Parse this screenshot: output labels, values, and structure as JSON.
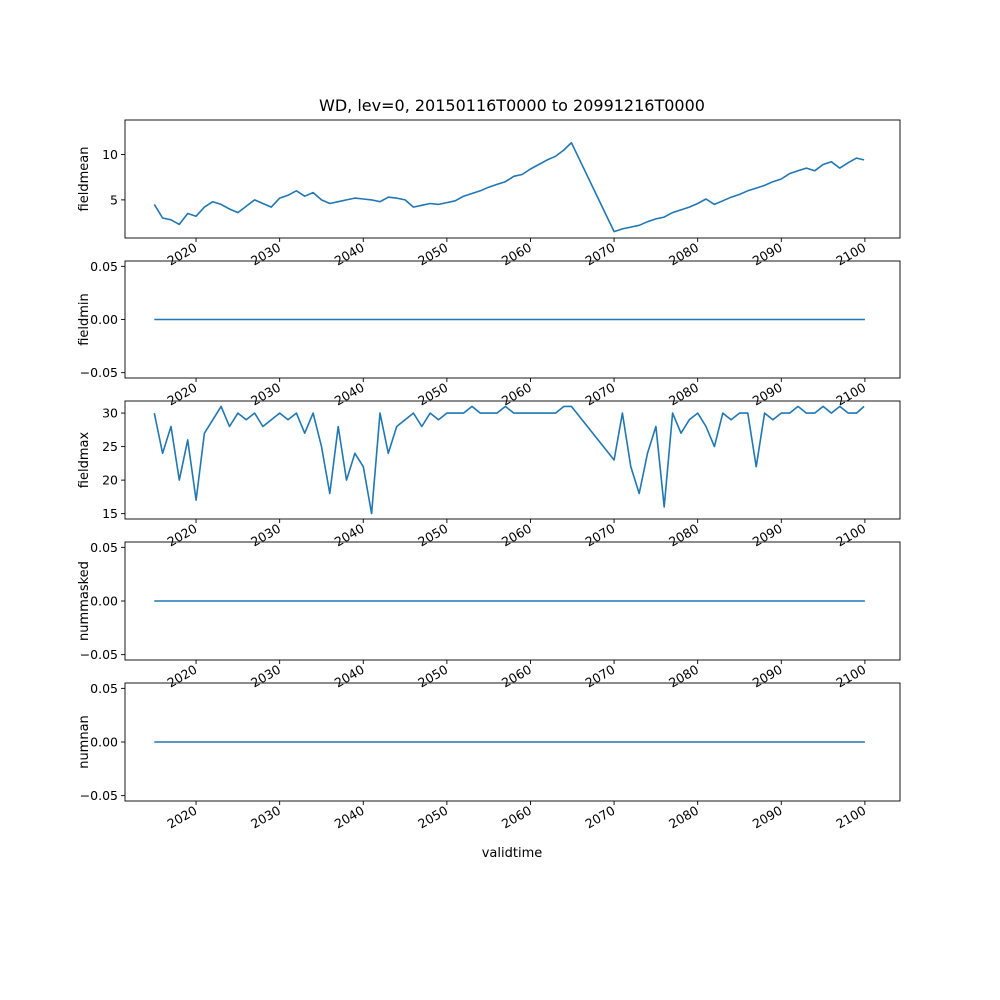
{
  "figure": {
    "title": "WD, lev=0, 20150116T0000 to 20991216T0000",
    "xlabel": "validtime"
  },
  "colors": {
    "line": "#1f77b4",
    "axis": "#000000",
    "background": "#ffffff"
  },
  "chart_data": [
    {
      "type": "line",
      "ylabel": "fieldmean",
      "xlim": [
        2011.5,
        2104.2
      ],
      "ylim": [
        0.8,
        13.8
      ],
      "yticks": [
        5,
        10
      ],
      "ytick_labels": [
        "5",
        "10"
      ],
      "xticks": [
        2020,
        2030,
        2040,
        2050,
        2060,
        2070,
        2080,
        2090,
        2100
      ],
      "xtick_labels": [
        "2020",
        "2030",
        "2040",
        "2050",
        "2060",
        "2070",
        "2080",
        "2090",
        "2100"
      ],
      "grid": false,
      "series_style": "monthly fluctuating series with a data gap between 2065 and 2070 (straight connecting line)",
      "x": [
        2015.0,
        2016.0,
        2017.0,
        2018.0,
        2019.0,
        2020.0,
        2021.0,
        2022.0,
        2023.0,
        2024.0,
        2025.0,
        2026.0,
        2027.0,
        2028.0,
        2029.0,
        2030.0,
        2031.0,
        2032.0,
        2033.0,
        2034.0,
        2035.0,
        2036.0,
        2037.0,
        2038.0,
        2039.0,
        2040.0,
        2041.0,
        2042.0,
        2043.0,
        2044.0,
        2045.0,
        2046.0,
        2047.0,
        2048.0,
        2049.0,
        2050.0,
        2051.0,
        2052.0,
        2053.0,
        2054.0,
        2055.0,
        2056.0,
        2057.0,
        2058.0,
        2059.0,
        2060.0,
        2061.0,
        2062.0,
        2063.0,
        2064.0,
        2064.9,
        2070.0,
        2071.0,
        2072.0,
        2073.0,
        2074.0,
        2075.0,
        2076.0,
        2077.0,
        2078.0,
        2079.0,
        2080.0,
        2081.0,
        2082.0,
        2083.0,
        2084.0,
        2085.0,
        2086.0,
        2087.0,
        2088.0,
        2089.0,
        2090.0,
        2091.0,
        2092.0,
        2093.0,
        2094.0,
        2095.0,
        2096.0,
        2097.0,
        2098.0,
        2099.0,
        2099.9
      ],
      "y": [
        4.5,
        3.0,
        2.8,
        2.3,
        3.5,
        3.2,
        4.2,
        4.8,
        4.5,
        4.0,
        3.6,
        4.3,
        5.0,
        4.6,
        4.2,
        5.2,
        5.5,
        6.0,
        5.4,
        5.8,
        5.0,
        4.6,
        4.8,
        5.0,
        5.2,
        5.1,
        5.0,
        4.8,
        5.3,
        5.2,
        5.0,
        4.2,
        4.4,
        4.6,
        4.5,
        4.7,
        4.9,
        5.4,
        5.7,
        6.0,
        6.4,
        6.7,
        7.0,
        7.6,
        7.8,
        8.4,
        8.9,
        9.4,
        9.8,
        10.5,
        11.3,
        1.5,
        1.8,
        2.0,
        2.2,
        2.6,
        2.9,
        3.1,
        3.6,
        3.9,
        4.2,
        4.6,
        5.1,
        4.5,
        4.9,
        5.3,
        5.6,
        6.0,
        6.3,
        6.6,
        7.0,
        7.3,
        7.9,
        8.2,
        8.5,
        8.2,
        8.9,
        9.2,
        8.5,
        9.1,
        9.6,
        9.4
      ]
    },
    {
      "type": "line",
      "ylabel": "fieldmin",
      "xlim": [
        2011.5,
        2104.2
      ],
      "ylim": [
        -0.055,
        0.055
      ],
      "yticks": [
        -0.05,
        0.0,
        0.05
      ],
      "ytick_labels": [
        "−0.05",
        "0.00",
        "0.05"
      ],
      "xticks": [
        2020,
        2030,
        2040,
        2050,
        2060,
        2070,
        2080,
        2090,
        2100
      ],
      "xtick_labels": [
        "2020",
        "2030",
        "2040",
        "2050",
        "2060",
        "2070",
        "2080",
        "2090",
        "2100"
      ],
      "grid": false,
      "x": [
        2015.0,
        2100.0
      ],
      "y": [
        0.0,
        0.0
      ]
    },
    {
      "type": "line",
      "ylabel": "fieldmax",
      "xlim": [
        2011.5,
        2104.2
      ],
      "ylim": [
        14.2,
        31.8
      ],
      "yticks": [
        15,
        20,
        25,
        30
      ],
      "ytick_labels": [
        "15",
        "20",
        "25",
        "30"
      ],
      "xticks": [
        2020,
        2030,
        2040,
        2050,
        2060,
        2070,
        2080,
        2090,
        2100
      ],
      "xtick_labels": [
        "2020",
        "2030",
        "2040",
        "2050",
        "2060",
        "2070",
        "2080",
        "2090",
        "2100"
      ],
      "grid": false,
      "series_style": "highly variable, mostly saturated near 28–31, with a data gap between 2065 and 2070",
      "x": [
        2015.0,
        2016.0,
        2017.0,
        2018.0,
        2019.0,
        2020.0,
        2021.0,
        2022.0,
        2023.0,
        2024.0,
        2025.0,
        2026.0,
        2027.0,
        2028.0,
        2029.0,
        2030.0,
        2031.0,
        2032.0,
        2033.0,
        2034.0,
        2035.0,
        2036.0,
        2037.0,
        2038.0,
        2039.0,
        2040.0,
        2041.0,
        2042.0,
        2043.0,
        2044.0,
        2045.0,
        2046.0,
        2047.0,
        2048.0,
        2049.0,
        2050.0,
        2051.0,
        2052.0,
        2053.0,
        2054.0,
        2055.0,
        2056.0,
        2057.0,
        2058.0,
        2059.0,
        2060.0,
        2061.0,
        2062.0,
        2063.0,
        2064.0,
        2064.9,
        2070.0,
        2071.0,
        2072.0,
        2073.0,
        2074.0,
        2075.0,
        2076.0,
        2077.0,
        2078.0,
        2079.0,
        2080.0,
        2081.0,
        2082.0,
        2083.0,
        2084.0,
        2085.0,
        2086.0,
        2087.0,
        2088.0,
        2089.0,
        2090.0,
        2091.0,
        2092.0,
        2093.0,
        2094.0,
        2095.0,
        2096.0,
        2097.0,
        2098.0,
        2099.0,
        2099.9
      ],
      "y": [
        30.0,
        24.0,
        28.0,
        20.0,
        26.0,
        17.0,
        27.0,
        29.0,
        31.0,
        28.0,
        30.0,
        29.0,
        30.0,
        28.0,
        29.0,
        30.0,
        29.0,
        30.0,
        27.0,
        30.0,
        25.0,
        18.0,
        28.0,
        20.0,
        24.0,
        22.0,
        15.0,
        30.0,
        24.0,
        28.0,
        29.0,
        30.0,
        28.0,
        30.0,
        29.0,
        30.0,
        30.0,
        30.0,
        31.0,
        30.0,
        30.0,
        30.0,
        31.0,
        30.0,
        30.0,
        30.0,
        30.0,
        30.0,
        30.0,
        31.0,
        31.0,
        23.0,
        30.0,
        22.0,
        18.0,
        24.0,
        28.0,
        16.0,
        30.0,
        27.0,
        29.0,
        30.0,
        28.0,
        25.0,
        30.0,
        29.0,
        30.0,
        30.0,
        22.0,
        30.0,
        29.0,
        30.0,
        30.0,
        31.0,
        30.0,
        30.0,
        31.0,
        30.0,
        31.0,
        30.0,
        30.0,
        31.0
      ]
    },
    {
      "type": "line",
      "ylabel": "nummasked",
      "xlim": [
        2011.5,
        2104.2
      ],
      "ylim": [
        -0.055,
        0.055
      ],
      "yticks": [
        -0.05,
        0.0,
        0.05
      ],
      "ytick_labels": [
        "−0.05",
        "0.00",
        "0.05"
      ],
      "xticks": [
        2020,
        2030,
        2040,
        2050,
        2060,
        2070,
        2080,
        2090,
        2100
      ],
      "xtick_labels": [
        "2020",
        "2030",
        "2040",
        "2050",
        "2060",
        "2070",
        "2080",
        "2090",
        "2100"
      ],
      "grid": false,
      "x": [
        2015.0,
        2100.0
      ],
      "y": [
        0.0,
        0.0
      ]
    },
    {
      "type": "line",
      "ylabel": "numnan",
      "xlim": [
        2011.5,
        2104.2
      ],
      "ylim": [
        -0.055,
        0.055
      ],
      "yticks": [
        -0.05,
        0.0,
        0.05
      ],
      "ytick_labels": [
        "−0.05",
        "0.00",
        "0.05"
      ],
      "xticks": [
        2020,
        2030,
        2040,
        2050,
        2060,
        2070,
        2080,
        2090,
        2100
      ],
      "xtick_labels": [
        "2020",
        "2030",
        "2040",
        "2050",
        "2060",
        "2070",
        "2080",
        "2090",
        "2100"
      ],
      "grid": false,
      "x": [
        2015.0,
        2100.0
      ],
      "y": [
        0.0,
        0.0
      ]
    }
  ]
}
